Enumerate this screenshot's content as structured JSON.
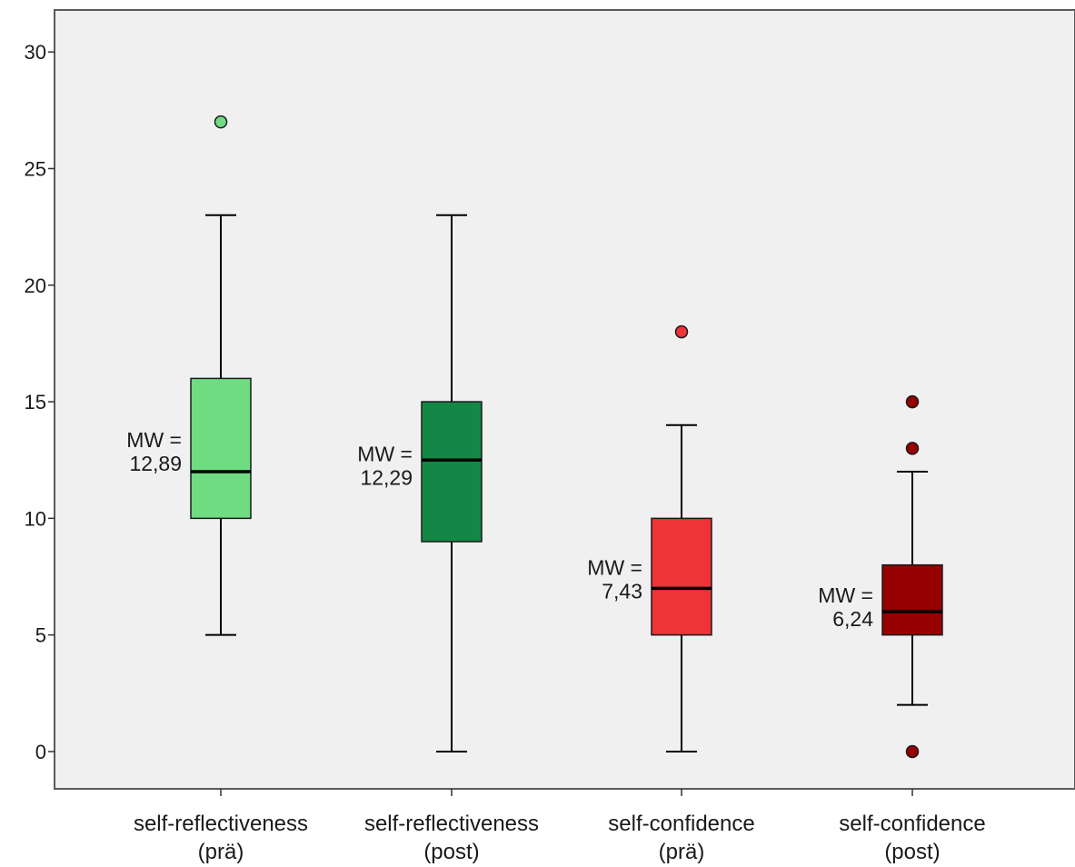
{
  "chart_data": {
    "type": "box",
    "title": "",
    "xlabel": "",
    "ylabel": "",
    "ylim": [
      -1.6,
      31.8
    ],
    "yticks": [
      0,
      5,
      10,
      15,
      20,
      25,
      30
    ],
    "ytick_labels": [
      "0",
      "5",
      "10",
      "15",
      "20",
      "25",
      "30"
    ],
    "grid": false,
    "legend": "none",
    "plot_background": "#f0f0f0",
    "boxes": [
      {
        "label_line1": "self-reflectiveness",
        "label_line2": "(prä)",
        "whisker_low": 5,
        "q1": 10,
        "median": 12,
        "q3": 16,
        "whisker_high": 23,
        "outliers": [
          27
        ],
        "mean_label_line1": "MW =",
        "mean_label_line2": "12,89",
        "color": "#6fdc82"
      },
      {
        "label_line1": "self-reflectiveness",
        "label_line2": "(post)",
        "whisker_low": 0,
        "q1": 9,
        "median": 12.5,
        "q3": 15,
        "whisker_high": 23,
        "outliers": [],
        "mean_label_line1": "MW =",
        "mean_label_line2": "12,29",
        "color": "#138846"
      },
      {
        "label_line1": "self-confidence",
        "label_line2": "(prä)",
        "whisker_low": 0,
        "q1": 5,
        "median": 7,
        "q3": 10,
        "whisker_high": 14,
        "outliers": [
          18
        ],
        "mean_label_line1": "MW =",
        "mean_label_line2": "7,43",
        "color": "#ee3339"
      },
      {
        "label_line1": "self-confidence",
        "label_line2": "(post)",
        "whisker_low": 2,
        "q1": 5,
        "median": 6,
        "q3": 8,
        "whisker_high": 12,
        "outliers": [
          0,
          13,
          15
        ],
        "mean_label_line1": "MW =",
        "mean_label_line2": "6,24",
        "color": "#970000"
      }
    ]
  }
}
